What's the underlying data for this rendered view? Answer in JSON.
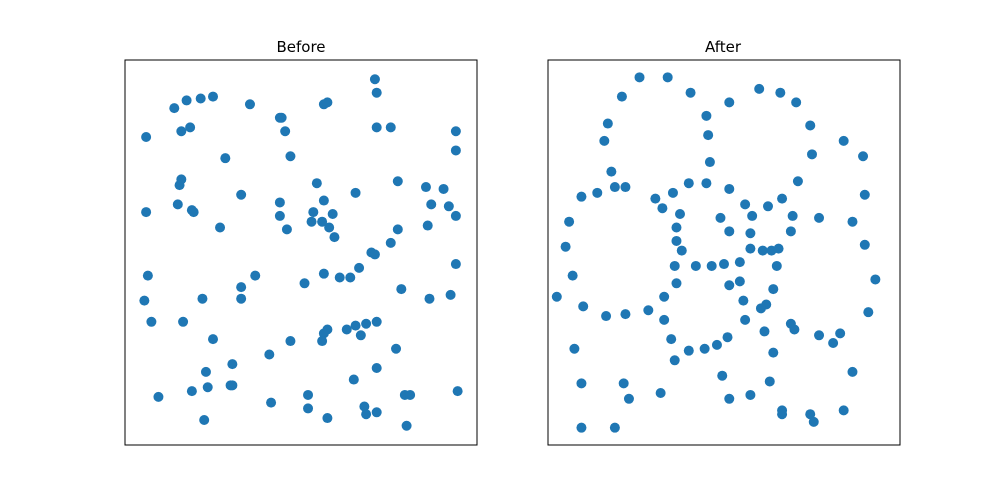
{
  "figure": {
    "background": "#ffffff"
  },
  "chart_data": [
    {
      "type": "scatter",
      "title": "Before",
      "xlim": [
        0,
        1
      ],
      "ylim": [
        0,
        1
      ],
      "axis_ticks": false,
      "grid": false,
      "legend": "none",
      "marker_color": "#1f77b4",
      "points": [
        [
          0.71,
          0.95
        ],
        [
          0.715,
          0.915
        ],
        [
          0.14,
          0.875
        ],
        [
          0.175,
          0.895
        ],
        [
          0.215,
          0.9
        ],
        [
          0.25,
          0.905
        ],
        [
          0.355,
          0.885
        ],
        [
          0.565,
          0.885
        ],
        [
          0.575,
          0.89
        ],
        [
          0.44,
          0.85
        ],
        [
          0.445,
          0.85
        ],
        [
          0.715,
          0.825
        ],
        [
          0.755,
          0.825
        ],
        [
          0.16,
          0.815
        ],
        [
          0.185,
          0.825
        ],
        [
          0.455,
          0.815
        ],
        [
          0.94,
          0.815
        ],
        [
          0.06,
          0.8
        ],
        [
          0.47,
          0.75
        ],
        [
          0.94,
          0.765
        ],
        [
          0.285,
          0.745
        ],
        [
          0.545,
          0.68
        ],
        [
          0.155,
          0.675
        ],
        [
          0.16,
          0.69
        ],
        [
          0.775,
          0.685
        ],
        [
          0.855,
          0.67
        ],
        [
          0.905,
          0.665
        ],
        [
          0.33,
          0.65
        ],
        [
          0.655,
          0.655
        ],
        [
          0.565,
          0.635
        ],
        [
          0.15,
          0.625
        ],
        [
          0.19,
          0.61
        ],
        [
          0.195,
          0.605
        ],
        [
          0.06,
          0.605
        ],
        [
          0.86,
          0.57
        ],
        [
          0.87,
          0.625
        ],
        [
          0.92,
          0.62
        ],
        [
          0.94,
          0.595
        ],
        [
          0.44,
          0.63
        ],
        [
          0.44,
          0.595
        ],
        [
          0.535,
          0.605
        ],
        [
          0.59,
          0.6
        ],
        [
          0.53,
          0.58
        ],
        [
          0.56,
          0.58
        ],
        [
          0.58,
          0.565
        ],
        [
          0.27,
          0.565
        ],
        [
          0.46,
          0.56
        ],
        [
          0.595,
          0.54
        ],
        [
          0.775,
          0.56
        ],
        [
          0.755,
          0.525
        ],
        [
          0.7,
          0.5
        ],
        [
          0.71,
          0.495
        ],
        [
          0.665,
          0.46
        ],
        [
          0.065,
          0.44
        ],
        [
          0.37,
          0.44
        ],
        [
          0.565,
          0.445
        ],
        [
          0.61,
          0.435
        ],
        [
          0.64,
          0.435
        ],
        [
          0.33,
          0.41
        ],
        [
          0.51,
          0.42
        ],
        [
          0.94,
          0.47
        ],
        [
          0.055,
          0.375
        ],
        [
          0.22,
          0.38
        ],
        [
          0.33,
          0.38
        ],
        [
          0.075,
          0.32
        ],
        [
          0.165,
          0.32
        ],
        [
          0.785,
          0.405
        ],
        [
          0.865,
          0.38
        ],
        [
          0.925,
          0.39
        ],
        [
          0.715,
          0.32
        ],
        [
          0.685,
          0.315
        ],
        [
          0.655,
          0.31
        ],
        [
          0.63,
          0.3
        ],
        [
          0.575,
          0.3
        ],
        [
          0.565,
          0.29
        ],
        [
          0.56,
          0.27
        ],
        [
          0.67,
          0.285
        ],
        [
          0.25,
          0.275
        ],
        [
          0.47,
          0.27
        ],
        [
          0.41,
          0.235
        ],
        [
          0.77,
          0.25
        ],
        [
          0.305,
          0.21
        ],
        [
          0.715,
          0.2
        ],
        [
          0.65,
          0.17
        ],
        [
          0.23,
          0.19
        ],
        [
          0.235,
          0.15
        ],
        [
          0.3,
          0.155
        ],
        [
          0.305,
          0.155
        ],
        [
          0.095,
          0.125
        ],
        [
          0.19,
          0.14
        ],
        [
          0.52,
          0.13
        ],
        [
          0.415,
          0.11
        ],
        [
          0.52,
          0.095
        ],
        [
          0.68,
          0.1
        ],
        [
          0.685,
          0.08
        ],
        [
          0.715,
          0.085
        ],
        [
          0.575,
          0.07
        ],
        [
          0.795,
          0.13
        ],
        [
          0.81,
          0.13
        ],
        [
          0.945,
          0.14
        ],
        [
          0.225,
          0.065
        ],
        [
          0.8,
          0.05
        ]
      ]
    },
    {
      "type": "scatter",
      "title": "After",
      "xlim": [
        0,
        1
      ],
      "ylim": [
        0,
        1
      ],
      "axis_ticks": false,
      "grid": false,
      "legend": "none",
      "marker_color": "#1f77b4",
      "points": [
        [
          0.26,
          0.955
        ],
        [
          0.34,
          0.955
        ],
        [
          0.405,
          0.915
        ],
        [
          0.6,
          0.925
        ],
        [
          0.66,
          0.915
        ],
        [
          0.705,
          0.89
        ],
        [
          0.21,
          0.905
        ],
        [
          0.45,
          0.855
        ],
        [
          0.515,
          0.89
        ],
        [
          0.17,
          0.835
        ],
        [
          0.455,
          0.805
        ],
        [
          0.745,
          0.83
        ],
        [
          0.16,
          0.79
        ],
        [
          0.84,
          0.79
        ],
        [
          0.46,
          0.735
        ],
        [
          0.75,
          0.755
        ],
        [
          0.895,
          0.75
        ],
        [
          0.18,
          0.71
        ],
        [
          0.71,
          0.685
        ],
        [
          0.19,
          0.67
        ],
        [
          0.22,
          0.67
        ],
        [
          0.095,
          0.645
        ],
        [
          0.14,
          0.655
        ],
        [
          0.305,
          0.64
        ],
        [
          0.4,
          0.68
        ],
        [
          0.355,
          0.655
        ],
        [
          0.45,
          0.68
        ],
        [
          0.515,
          0.665
        ],
        [
          0.56,
          0.625
        ],
        [
          0.665,
          0.64
        ],
        [
          0.9,
          0.65
        ],
        [
          0.325,
          0.615
        ],
        [
          0.375,
          0.6
        ],
        [
          0.58,
          0.595
        ],
        [
          0.625,
          0.62
        ],
        [
          0.695,
          0.595
        ],
        [
          0.77,
          0.59
        ],
        [
          0.06,
          0.58
        ],
        [
          0.365,
          0.565
        ],
        [
          0.365,
          0.53
        ],
        [
          0.575,
          0.55
        ],
        [
          0.69,
          0.555
        ],
        [
          0.515,
          0.555
        ],
        [
          0.49,
          0.59
        ],
        [
          0.865,
          0.58
        ],
        [
          0.05,
          0.515
        ],
        [
          0.38,
          0.505
        ],
        [
          0.575,
          0.51
        ],
        [
          0.61,
          0.505
        ],
        [
          0.635,
          0.505
        ],
        [
          0.655,
          0.51
        ],
        [
          0.07,
          0.44
        ],
        [
          0.36,
          0.465
        ],
        [
          0.5,
          0.47
        ],
        [
          0.42,
          0.465
        ],
        [
          0.465,
          0.465
        ],
        [
          0.545,
          0.475
        ],
        [
          0.545,
          0.425
        ],
        [
          0.515,
          0.415
        ],
        [
          0.9,
          0.52
        ],
        [
          0.65,
          0.465
        ],
        [
          0.93,
          0.43
        ],
        [
          0.365,
          0.42
        ],
        [
          0.64,
          0.405
        ],
        [
          0.33,
          0.385
        ],
        [
          0.025,
          0.385
        ],
        [
          0.555,
          0.375
        ],
        [
          0.62,
          0.365
        ],
        [
          0.605,
          0.355
        ],
        [
          0.1,
          0.36
        ],
        [
          0.285,
          0.35
        ],
        [
          0.56,
          0.325
        ],
        [
          0.22,
          0.34
        ],
        [
          0.165,
          0.335
        ],
        [
          0.33,
          0.325
        ],
        [
          0.91,
          0.345
        ],
        [
          0.69,
          0.315
        ],
        [
          0.7,
          0.3
        ],
        [
          0.615,
          0.295
        ],
        [
          0.83,
          0.29
        ],
        [
          0.77,
          0.285
        ],
        [
          0.51,
          0.28
        ],
        [
          0.35,
          0.275
        ],
        [
          0.075,
          0.25
        ],
        [
          0.445,
          0.25
        ],
        [
          0.4,
          0.245
        ],
        [
          0.48,
          0.26
        ],
        [
          0.64,
          0.24
        ],
        [
          0.81,
          0.265
        ],
        [
          0.36,
          0.22
        ],
        [
          0.865,
          0.19
        ],
        [
          0.095,
          0.16
        ],
        [
          0.215,
          0.16
        ],
        [
          0.495,
          0.18
        ],
        [
          0.63,
          0.165
        ],
        [
          0.32,
          0.135
        ],
        [
          0.23,
          0.12
        ],
        [
          0.515,
          0.12
        ],
        [
          0.575,
          0.13
        ],
        [
          0.665,
          0.08
        ],
        [
          0.745,
          0.08
        ],
        [
          0.84,
          0.09
        ],
        [
          0.095,
          0.045
        ],
        [
          0.19,
          0.045
        ],
        [
          0.755,
          0.06
        ],
        [
          0.665,
          0.09
        ]
      ]
    }
  ]
}
